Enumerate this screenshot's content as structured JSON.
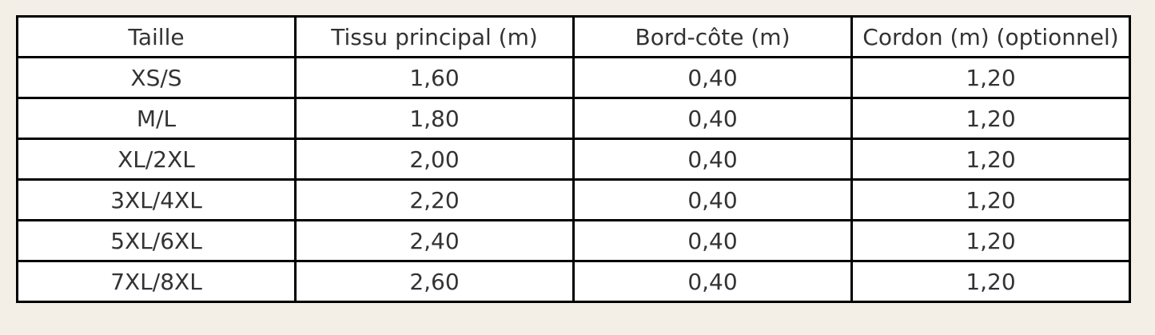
{
  "table": {
    "header": [
      "Taille",
      "Tissu principal (m)",
      "Bord-côte (m)",
      "Cordon (m) (optionnel)"
    ],
    "rows": [
      [
        "XS/S",
        "1,60",
        "0,40",
        "1,20"
      ],
      [
        "M/L",
        "1,80",
        "0,40",
        "1,20"
      ],
      [
        "XL/2XL",
        "2,00",
        "0,40",
        "1,20"
      ],
      [
        "3XL/4XL",
        "2,20",
        "0,40",
        "1,20"
      ],
      [
        "5XL/6XL",
        "2,40",
        "0,40",
        "1,20"
      ],
      [
        "7XL/8XL",
        "2,60",
        "0,40",
        "1,20"
      ]
    ]
  }
}
